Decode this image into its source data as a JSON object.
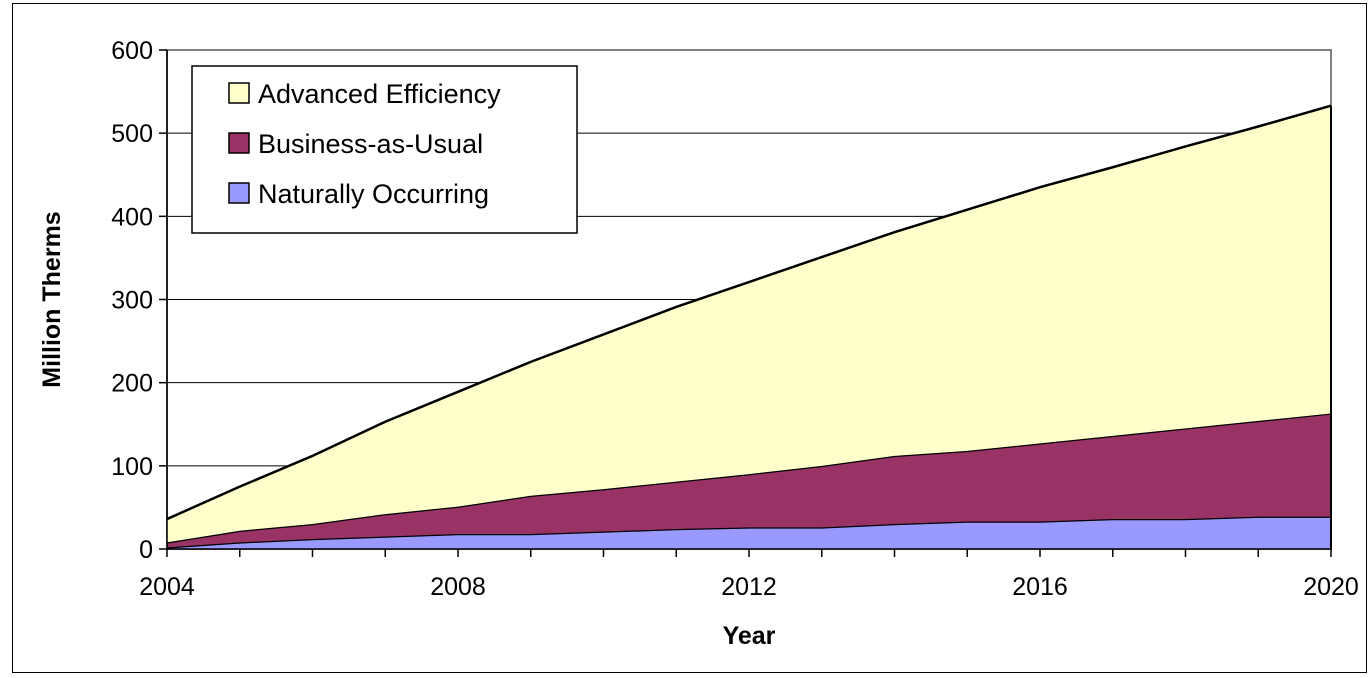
{
  "chart_data": {
    "type": "area",
    "stacked": true,
    "title": "",
    "xlabel": "Year",
    "ylabel": "Million Therms",
    "xlim": [
      2004,
      2020
    ],
    "ylim": [
      0,
      600
    ],
    "x_ticks": [
      2004,
      2008,
      2012,
      2016,
      2020
    ],
    "y_ticks": [
      0,
      100,
      200,
      300,
      400,
      500,
      600
    ],
    "grid": "horizontal",
    "legend_position": "top-left",
    "x": [
      2004,
      2005,
      2006,
      2007,
      2008,
      2009,
      2010,
      2011,
      2012,
      2013,
      2014,
      2015,
      2016,
      2017,
      2018,
      2019,
      2020
    ],
    "series": [
      {
        "name": "Naturally Occurring",
        "color": "#9999ff",
        "values": [
          2,
          8,
          12,
          15,
          18,
          18,
          21,
          24,
          26,
          26,
          30,
          33,
          33,
          36,
          36,
          39,
          39
        ]
      },
      {
        "name": "Business-as-Usual",
        "color": "#993366",
        "values": [
          8,
          22,
          30,
          42,
          51,
          64,
          72,
          81,
          90,
          100,
          112,
          118,
          127,
          136,
          145,
          154,
          163
        ]
      },
      {
        "name": "Advanced Efficiency",
        "color": "#ffffcc",
        "values": [
          36,
          75,
          112,
          153,
          189,
          225,
          258,
          291,
          321,
          351,
          381,
          408,
          435,
          459,
          484,
          508,
          533
        ]
      }
    ],
    "legend_order": [
      "Advanced Efficiency",
      "Business-as-Usual",
      "Naturally Occurring"
    ]
  }
}
